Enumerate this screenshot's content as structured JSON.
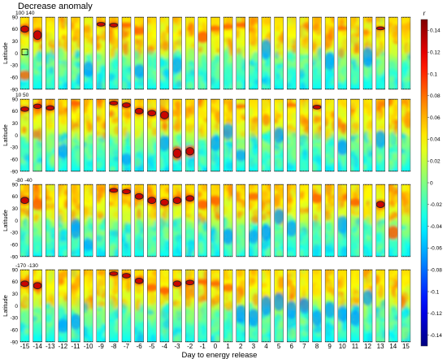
{
  "chart_data": {
    "type": "heatmap",
    "title": "Decrease anomaly",
    "xlabel": "Day to energy release",
    "ylabel": "Latitude",
    "days": [
      "-15",
      "-14",
      "-13",
      "-12",
      "-11",
      "-10",
      "-9",
      "-8",
      "-7",
      "-6",
      "-5",
      "-4",
      "-3",
      "-2",
      "-1",
      "0",
      "1",
      "2",
      "3",
      "4",
      "5",
      "6",
      "7",
      "8",
      "9",
      "10",
      "11",
      "12",
      "13",
      "14",
      "15"
    ],
    "yticks": [
      "90",
      "60",
      "30",
      "0",
      "-30",
      "-60",
      "-90"
    ],
    "ylim": [
      -90,
      90
    ],
    "rows": [
      {
        "label": "100 140",
        "hot": [
          [
            1,
            60,
            25,
            1.0
          ],
          [
            2,
            45,
            35,
            0.9
          ],
          [
            7,
            72,
            15,
            0.9
          ],
          [
            8,
            70,
            15,
            0.8
          ],
          [
            9,
            70,
            15,
            0.6
          ],
          [
            10,
            55,
            20,
            0.5
          ],
          [
            15,
            40,
            30,
            0.6
          ],
          [
            16,
            62,
            15,
            0.5
          ],
          [
            17,
            66,
            15,
            0.6
          ],
          [
            18,
            70,
            14,
            0.5
          ],
          [
            26,
            62,
            12,
            0.4
          ],
          [
            29,
            62,
            12,
            0.7
          ],
          [
            1,
            -55,
            25,
            0.4
          ]
        ],
        "cold": [
          [
            6,
            -40,
            40,
            0.5
          ],
          [
            10,
            -45,
            35,
            0.5
          ],
          [
            13,
            -30,
            40,
            0.4
          ],
          [
            20,
            10,
            50,
            0.5
          ],
          [
            25,
            -20,
            45,
            0.5
          ],
          [
            28,
            -10,
            50,
            0.6
          ]
        ]
      },
      {
        "label": "10  50",
        "hot": [
          [
            1,
            65,
            18,
            1.0
          ],
          [
            2,
            72,
            18,
            0.8
          ],
          [
            3,
            68,
            18,
            0.7
          ],
          [
            5,
            80,
            15,
            0.6
          ],
          [
            8,
            80,
            15,
            1.0
          ],
          [
            9,
            75,
            18,
            1.0
          ],
          [
            10,
            60,
            22,
            0.8
          ],
          [
            11,
            55,
            22,
            0.8
          ],
          [
            12,
            50,
            30,
            0.8
          ],
          [
            13,
            -45,
            35,
            0.9
          ],
          [
            14,
            -40,
            30,
            0.7
          ],
          [
            18,
            72,
            12,
            0.5
          ],
          [
            22,
            75,
            12,
            0.5
          ],
          [
            24,
            70,
            15,
            0.7
          ]
        ],
        "cold": [
          [
            4,
            -40,
            35,
            0.5
          ],
          [
            9,
            -60,
            30,
            0.5
          ],
          [
            12,
            -20,
            40,
            0.5
          ],
          [
            16,
            -20,
            40,
            0.5
          ],
          [
            17,
            10,
            40,
            0.5
          ],
          [
            18,
            -50,
            30,
            0.5
          ],
          [
            21,
            0,
            40,
            0.5
          ],
          [
            26,
            -30,
            40,
            0.6
          ],
          [
            29,
            -10,
            45,
            0.5
          ]
        ]
      },
      {
        "label": "-80 -40",
        "hot": [
          [
            1,
            50,
            25,
            0.7
          ],
          [
            2,
            40,
            30,
            0.6
          ],
          [
            8,
            75,
            15,
            1.0
          ],
          [
            9,
            72,
            18,
            1.0
          ],
          [
            10,
            60,
            22,
            0.8
          ],
          [
            11,
            50,
            25,
            0.7
          ],
          [
            12,
            45,
            25,
            0.7
          ],
          [
            13,
            50,
            25,
            0.8
          ],
          [
            14,
            55,
            22,
            0.7
          ],
          [
            15,
            40,
            25,
            0.6
          ],
          [
            16,
            50,
            25,
            0.5
          ],
          [
            19,
            60,
            20,
            0.5
          ],
          [
            24,
            55,
            25,
            0.6
          ],
          [
            27,
            45,
            20,
            0.6
          ],
          [
            29,
            40,
            25,
            0.7
          ],
          [
            30,
            -30,
            35,
            0.6
          ]
        ],
        "cold": [
          [
            5,
            -20,
            50,
            0.6
          ],
          [
            6,
            -60,
            30,
            0.4
          ],
          [
            17,
            -40,
            40,
            0.6
          ],
          [
            19,
            -40,
            35,
            0.5
          ],
          [
            20,
            -30,
            40,
            0.6
          ],
          [
            21,
            10,
            40,
            0.6
          ],
          [
            22,
            -20,
            40,
            0.5
          ],
          [
            26,
            -10,
            45,
            0.4
          ]
        ]
      },
      {
        "label": "-170 -130",
        "hot": [
          [
            1,
            55,
            22,
            0.9
          ],
          [
            2,
            50,
            25,
            0.9
          ],
          [
            8,
            80,
            15,
            0.9
          ],
          [
            9,
            75,
            18,
            0.9
          ],
          [
            10,
            62,
            22,
            0.9
          ],
          [
            11,
            45,
            20,
            0.6
          ],
          [
            12,
            38,
            20,
            0.6
          ],
          [
            13,
            55,
            22,
            0.7
          ],
          [
            14,
            58,
            18,
            0.8
          ],
          [
            15,
            60,
            15,
            0.6
          ],
          [
            16,
            55,
            15,
            0.5
          ],
          [
            17,
            45,
            20,
            0.4
          ]
        ],
        "cold": [
          [
            4,
            -50,
            35,
            0.5
          ],
          [
            5,
            -40,
            40,
            0.5
          ],
          [
            18,
            -20,
            45,
            0.6
          ],
          [
            19,
            -30,
            45,
            0.6
          ],
          [
            20,
            0,
            50,
            0.6
          ],
          [
            21,
            10,
            45,
            0.6
          ],
          [
            22,
            -10,
            45,
            0.6
          ],
          [
            23,
            0,
            40,
            0.5
          ],
          [
            24,
            -30,
            40,
            0.5
          ],
          [
            25,
            -10,
            40,
            0.5
          ],
          [
            26,
            -20,
            40,
            0.5
          ],
          [
            27,
            -30,
            40,
            0.5
          ],
          [
            28,
            20,
            40,
            0.5
          ]
        ]
      }
    ],
    "colorbar": {
      "label": "r",
      "range": [
        -0.15,
        0.15
      ],
      "ticks": [
        "0.14",
        "0.12",
        "0.1",
        "0.08",
        "0.06",
        "0.04",
        "0.02",
        "0",
        "-0.02",
        "-0.04",
        "-0.06",
        "-0.08",
        "-0.1",
        "-0.12",
        "-0.14"
      ],
      "colormap": "jet"
    }
  }
}
